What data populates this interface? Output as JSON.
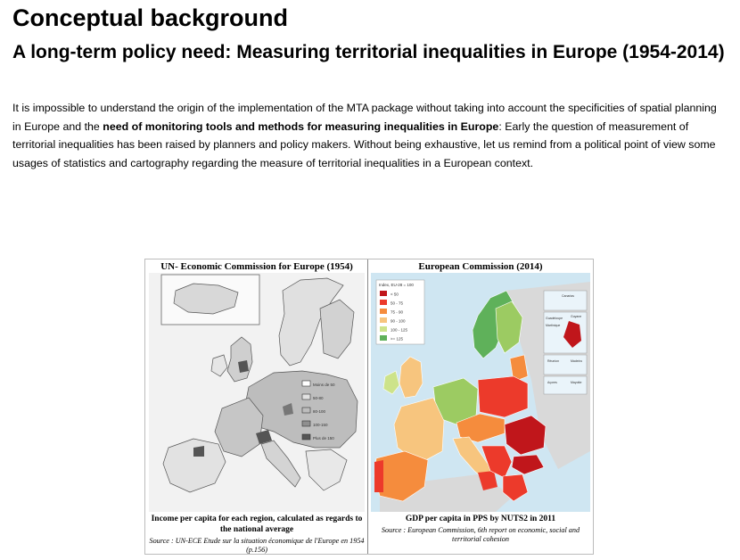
{
  "page": {
    "title": "Conceptual background",
    "subtitle": "A long-term policy need: Measuring territorial inequalities in Europe (1954-2014)",
    "paragraph": {
      "part1": "It is impossible to understand the origin of the implementation of the MTA package without taking into account the specificities of spatial planning in Europe and the ",
      "bold": "need of monitoring tools and methods for measuring inequalities in Europe",
      "part2": ": Early the question of measurement of territorial inequalities has been raised by planners and policy makers. Without being exhaustive, let us remind from a political point of view some usages of statistics and cartography regarding the measure of territorial inequalities in a European context."
    }
  },
  "figure": {
    "left": {
      "title": "UN- Economic Commission for Europe (1954)",
      "caption": "Income per capita for each region, calculated as regards to the national average",
      "source": "Source : UN-ECE Etude sur la situation économique de l'Europe en 1954 (p.156)",
      "legend": [
        "Moins de 50",
        "50-80",
        "80-100",
        "100-150",
        "Plus de 150"
      ],
      "legend_colors": [
        "#ffffff",
        "#e2e2e2",
        "#bdbdbd",
        "#8f8f8f",
        "#555555"
      ]
    },
    "right": {
      "title": "European Commission (2014)",
      "caption": "GDP per capita in PPS by NUTS2 in 2011",
      "source": "Source : European Commission, 6th report on economic, social and territorial cohesion",
      "legend_title": "Index, EU-28 = 100",
      "legend": [
        "< 50",
        "50 - 75",
        "75 - 90",
        "90 - 100",
        "100 - 125",
        ">= 125"
      ],
      "legend_colors": [
        "#c0161b",
        "#ec3a2b",
        "#f58c3d",
        "#f7c57e",
        "#cde38a",
        "#5fb15a"
      ],
      "inset_labels": [
        "Canarias",
        "Guadeloupe",
        "Martinique",
        "Guyane",
        "Réunion",
        "Madeira",
        "Açores",
        "Mayotte"
      ]
    }
  }
}
